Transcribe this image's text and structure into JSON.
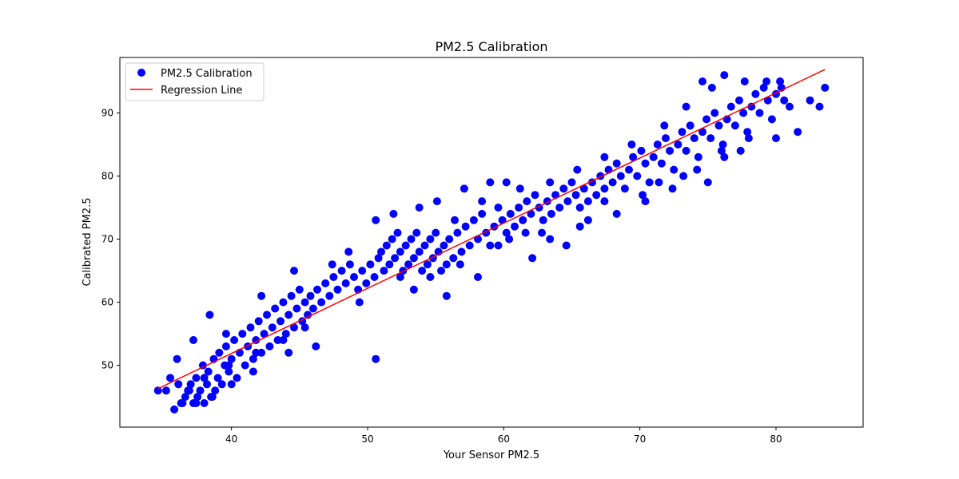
{
  "chart_data": {
    "type": "scatter",
    "title": "PM2.5 Calibration",
    "xlabel": "Your Sensor PM2.5",
    "ylabel": "Calibrated PM2.5",
    "xlim": [
      31.8,
      86.4
    ],
    "ylim": [
      40.2,
      98.8
    ],
    "x_ticks": [
      40,
      50,
      60,
      70,
      80
    ],
    "y_ticks": [
      50,
      60,
      70,
      80,
      90
    ],
    "grid": false,
    "legend_position": "top-left",
    "series": [
      {
        "name": "PM2.5 Calibration",
        "kind": "scatter",
        "color": "#0000ff",
        "points": [
          [
            34.6,
            46
          ],
          [
            35.2,
            46
          ],
          [
            35.5,
            48
          ],
          [
            35.8,
            43
          ],
          [
            36.1,
            47
          ],
          [
            36.3,
            44
          ],
          [
            36.6,
            45
          ],
          [
            36.8,
            46
          ],
          [
            37.0,
            47
          ],
          [
            37.2,
            44
          ],
          [
            37.4,
            48
          ],
          [
            37.5,
            45
          ],
          [
            37.7,
            46
          ],
          [
            37.9,
            50
          ],
          [
            38.0,
            44
          ],
          [
            38.2,
            47
          ],
          [
            38.3,
            49
          ],
          [
            38.5,
            45
          ],
          [
            38.7,
            51
          ],
          [
            38.8,
            46
          ],
          [
            39.0,
            48
          ],
          [
            39.1,
            52
          ],
          [
            39.3,
            47
          ],
          [
            39.5,
            50
          ],
          [
            39.6,
            53
          ],
          [
            39.8,
            49
          ],
          [
            40.0,
            51
          ],
          [
            40.2,
            54
          ],
          [
            40.4,
            48
          ],
          [
            40.6,
            52
          ],
          [
            40.8,
            55
          ],
          [
            41.0,
            50
          ],
          [
            41.2,
            53
          ],
          [
            41.4,
            56
          ],
          [
            41.6,
            51
          ],
          [
            41.8,
            54
          ],
          [
            42.0,
            57
          ],
          [
            42.2,
            52
          ],
          [
            42.4,
            55
          ],
          [
            42.6,
            58
          ],
          [
            42.8,
            53
          ],
          [
            43.0,
            56
          ],
          [
            43.2,
            59
          ],
          [
            43.4,
            54
          ],
          [
            43.6,
            57
          ],
          [
            43.8,
            60
          ],
          [
            44.0,
            55
          ],
          [
            44.2,
            58
          ],
          [
            44.4,
            61
          ],
          [
            44.6,
            56
          ],
          [
            44.8,
            59
          ],
          [
            45.0,
            62
          ],
          [
            45.2,
            57
          ],
          [
            45.4,
            60
          ],
          [
            45.6,
            58
          ],
          [
            45.8,
            61
          ],
          [
            46.0,
            59
          ],
          [
            46.3,
            62
          ],
          [
            46.6,
            60
          ],
          [
            46.9,
            63
          ],
          [
            47.2,
            61
          ],
          [
            47.5,
            64
          ],
          [
            47.8,
            62
          ],
          [
            48.1,
            65
          ],
          [
            48.4,
            63
          ],
          [
            48.7,
            66
          ],
          [
            49.0,
            64
          ],
          [
            49.3,
            62
          ],
          [
            49.6,
            65
          ],
          [
            49.9,
            63
          ],
          [
            50.2,
            66
          ],
          [
            50.5,
            64
          ],
          [
            50.8,
            67
          ],
          [
            51.0,
            68
          ],
          [
            51.2,
            65
          ],
          [
            51.4,
            69
          ],
          [
            51.6,
            66
          ],
          [
            51.8,
            70
          ],
          [
            52.0,
            67
          ],
          [
            52.2,
            71
          ],
          [
            52.4,
            68
          ],
          [
            52.6,
            65
          ],
          [
            52.8,
            69
          ],
          [
            53.0,
            66
          ],
          [
            53.2,
            70
          ],
          [
            53.4,
            67
          ],
          [
            53.6,
            71
          ],
          [
            53.8,
            68
          ],
          [
            54.0,
            65
          ],
          [
            54.2,
            69
          ],
          [
            54.4,
            66
          ],
          [
            54.6,
            70
          ],
          [
            54.8,
            67
          ],
          [
            55.0,
            71
          ],
          [
            55.2,
            68
          ],
          [
            55.4,
            65
          ],
          [
            55.6,
            69
          ],
          [
            55.8,
            66
          ],
          [
            56.0,
            70
          ],
          [
            56.3,
            67
          ],
          [
            56.6,
            71
          ],
          [
            56.9,
            68
          ],
          [
            57.2,
            72
          ],
          [
            57.5,
            69
          ],
          [
            57.8,
            73
          ],
          [
            58.1,
            70
          ],
          [
            58.4,
            74
          ],
          [
            58.7,
            71
          ],
          [
            59.0,
            69
          ],
          [
            59.3,
            72
          ],
          [
            59.6,
            75
          ],
          [
            59.9,
            73
          ],
          [
            60.2,
            71
          ],
          [
            60.5,
            74
          ],
          [
            60.8,
            72
          ],
          [
            61.1,
            75
          ],
          [
            61.4,
            73
          ],
          [
            61.7,
            76
          ],
          [
            62.0,
            74
          ],
          [
            62.3,
            77
          ],
          [
            62.6,
            75
          ],
          [
            62.9,
            73
          ],
          [
            63.2,
            76
          ],
          [
            63.5,
            74
          ],
          [
            63.8,
            77
          ],
          [
            64.1,
            75
          ],
          [
            64.4,
            78
          ],
          [
            64.7,
            76
          ],
          [
            65.0,
            79
          ],
          [
            65.3,
            77
          ],
          [
            65.6,
            75
          ],
          [
            65.9,
            78
          ],
          [
            66.2,
            76
          ],
          [
            66.5,
            79
          ],
          [
            66.8,
            77
          ],
          [
            67.1,
            80
          ],
          [
            67.4,
            78
          ],
          [
            67.7,
            81
          ],
          [
            68.0,
            79
          ],
          [
            68.3,
            82
          ],
          [
            68.6,
            80
          ],
          [
            68.9,
            78
          ],
          [
            69.2,
            81
          ],
          [
            69.5,
            83
          ],
          [
            69.8,
            80
          ],
          [
            70.1,
            84
          ],
          [
            70.4,
            82
          ],
          [
            70.7,
            79
          ],
          [
            71.0,
            83
          ],
          [
            71.3,
            85
          ],
          [
            71.6,
            82
          ],
          [
            71.9,
            86
          ],
          [
            72.2,
            84
          ],
          [
            72.5,
            81
          ],
          [
            72.8,
            85
          ],
          [
            73.1,
            87
          ],
          [
            73.4,
            84
          ],
          [
            73.7,
            88
          ],
          [
            74.0,
            86
          ],
          [
            74.3,
            83
          ],
          [
            74.6,
            87
          ],
          [
            74.9,
            89
          ],
          [
            75.2,
            86
          ],
          [
            75.5,
            90
          ],
          [
            75.8,
            88
          ],
          [
            76.1,
            85
          ],
          [
            76.4,
            89
          ],
          [
            76.7,
            91
          ],
          [
            77.0,
            88
          ],
          [
            77.3,
            92
          ],
          [
            77.6,
            90
          ],
          [
            77.9,
            87
          ],
          [
            78.2,
            91
          ],
          [
            78.5,
            93
          ],
          [
            78.8,
            90
          ],
          [
            79.1,
            94
          ],
          [
            79.4,
            92
          ],
          [
            79.7,
            89
          ],
          [
            80.0,
            93
          ],
          [
            80.3,
            95
          ],
          [
            80.6,
            92
          ],
          [
            81.0,
            91
          ],
          [
            81.6,
            87
          ],
          [
            82.5,
            92
          ],
          [
            83.2,
            91
          ],
          [
            83.6,
            94
          ],
          [
            76.2,
            96
          ],
          [
            74.6,
            95
          ],
          [
            79.3,
            95
          ],
          [
            50.6,
            51
          ],
          [
            36.0,
            51
          ],
          [
            37.2,
            54
          ],
          [
            38.4,
            58
          ],
          [
            39.6,
            55
          ],
          [
            42.2,
            61
          ],
          [
            44.6,
            65
          ],
          [
            47.4,
            66
          ],
          [
            48.6,
            68
          ],
          [
            50.6,
            73
          ],
          [
            51.9,
            74
          ],
          [
            53.8,
            75
          ],
          [
            55.1,
            76
          ],
          [
            57.1,
            78
          ],
          [
            59.0,
            79
          ],
          [
            60.2,
            79
          ],
          [
            61.6,
            71
          ],
          [
            62.1,
            67
          ],
          [
            64.6,
            69
          ],
          [
            66.2,
            73
          ],
          [
            67.4,
            76
          ],
          [
            70.2,
            77
          ],
          [
            71.4,
            79
          ],
          [
            73.2,
            80
          ],
          [
            75.0,
            79
          ],
          [
            76.2,
            83
          ],
          [
            77.4,
            84
          ],
          [
            80.0,
            86
          ],
          [
            55.8,
            61
          ],
          [
            53.4,
            62
          ],
          [
            46.2,
            53
          ],
          [
            44.2,
            52
          ],
          [
            41.6,
            49
          ],
          [
            40.0,
            47
          ],
          [
            38.6,
            45
          ],
          [
            37.4,
            44
          ],
          [
            36.4,
            44
          ],
          [
            58.1,
            64
          ],
          [
            60.4,
            70
          ],
          [
            63.4,
            70
          ],
          [
            65.6,
            72
          ],
          [
            68.3,
            74
          ],
          [
            70.4,
            76
          ],
          [
            72.4,
            78
          ],
          [
            74.2,
            81
          ],
          [
            76.0,
            84
          ],
          [
            78.0,
            86
          ],
          [
            56.4,
            73
          ],
          [
            58.4,
            76
          ],
          [
            61.2,
            78
          ],
          [
            63.4,
            79
          ],
          [
            65.4,
            81
          ],
          [
            67.4,
            83
          ],
          [
            69.4,
            85
          ],
          [
            71.8,
            88
          ],
          [
            73.4,
            91
          ],
          [
            75.3,
            94
          ],
          [
            77.7,
            95
          ],
          [
            80.4,
            94
          ],
          [
            49.4,
            60
          ],
          [
            45.4,
            56
          ],
          [
            43.8,
            54
          ],
          [
            41.8,
            52
          ],
          [
            39.8,
            50
          ],
          [
            38.0,
            48
          ],
          [
            36.9,
            46
          ],
          [
            52.4,
            64
          ],
          [
            54.6,
            64
          ],
          [
            56.8,
            66
          ],
          [
            59.6,
            69
          ],
          [
            62.8,
            71
          ]
        ]
      },
      {
        "name": "Regression Line",
        "kind": "line",
        "color": "#ff0000",
        "points": [
          [
            34.6,
            46.3
          ],
          [
            83.6,
            96.9
          ]
        ]
      }
    ]
  }
}
